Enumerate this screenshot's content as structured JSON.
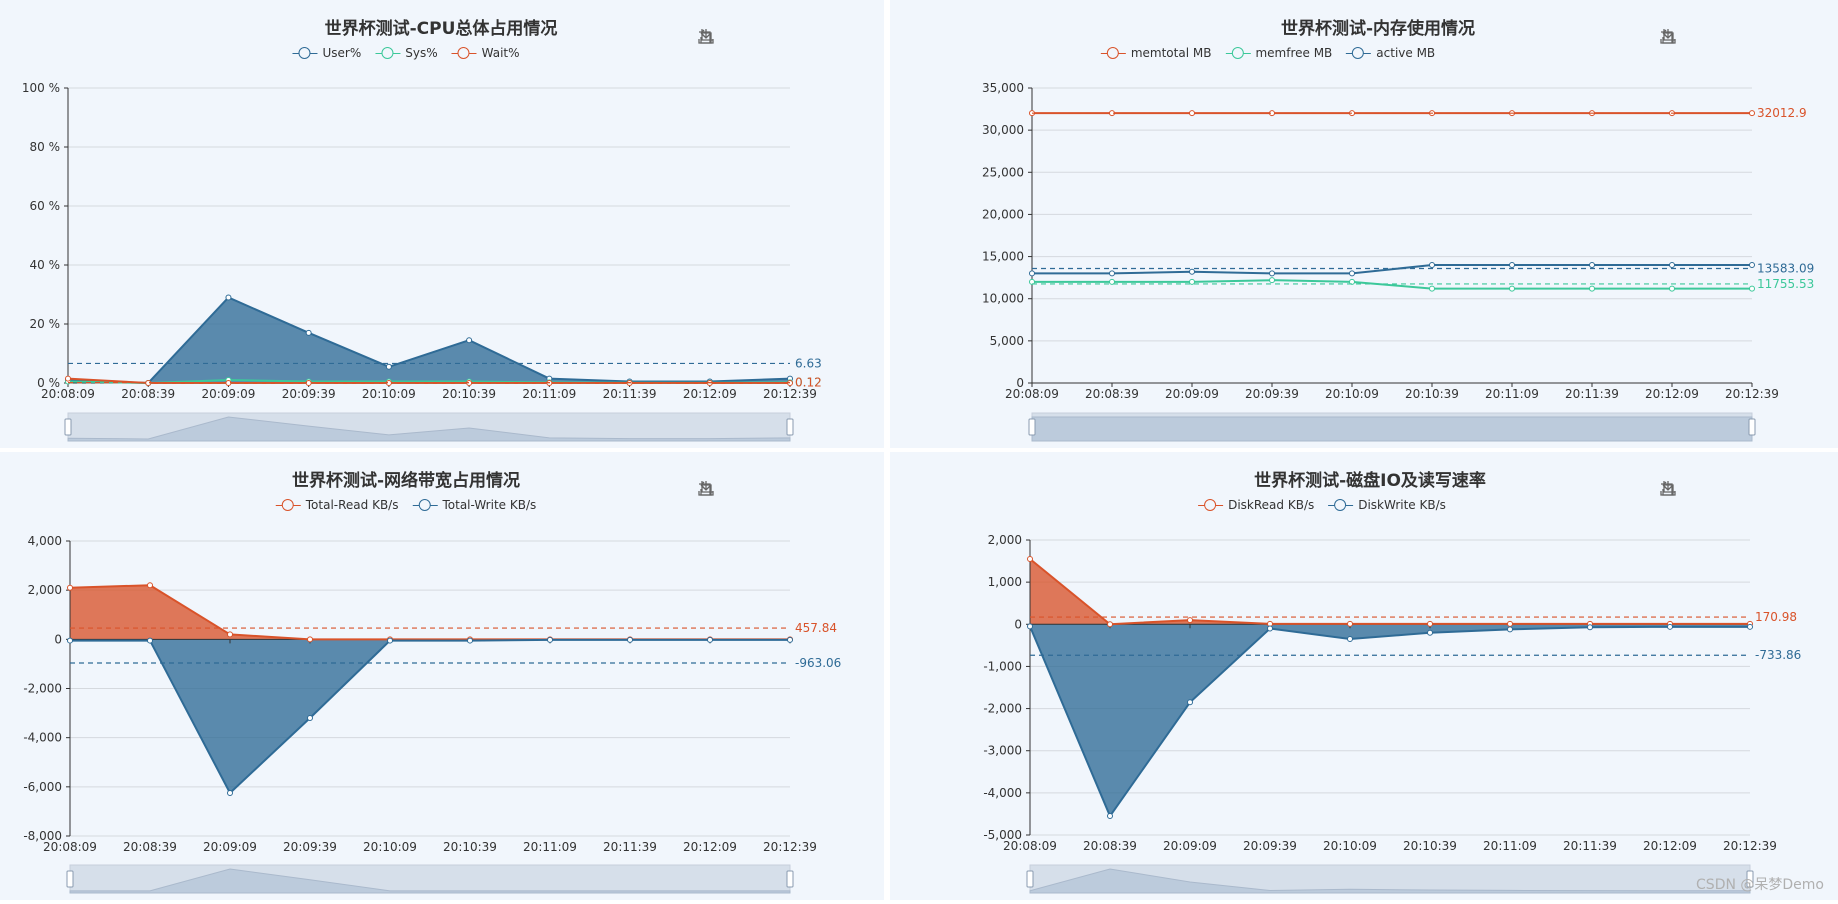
{
  "watermark": "CSDN @呆梦Demo",
  "charts": [
    {
      "title": "世界杯测试-CPU总体占用情况",
      "legend": [
        {
          "name": "User%",
          "color": "#2f6b96"
        },
        {
          "name": "Sys%",
          "color": "#3cc89a"
        },
        {
          "name": "Wait%",
          "color": "#d9532a"
        }
      ]
    },
    {
      "title": "世界杯测试-内存使用情况",
      "legend": [
        {
          "name": "memtotal MB",
          "color": "#d9532a"
        },
        {
          "name": "memfree MB",
          "color": "#3cc89a"
        },
        {
          "name": "active MB",
          "color": "#2f6b96"
        }
      ]
    },
    {
      "title": "世界杯测试-网络带宽占用情况",
      "legend": [
        {
          "name": "Total-Read KB/s",
          "color": "#d9532a"
        },
        {
          "name": "Total-Write KB/s",
          "color": "#2f6b96"
        }
      ]
    },
    {
      "title": "世界杯测试-磁盘IO及读写速率",
      "legend": [
        {
          "name": "DiskRead KB/s",
          "color": "#d9532a"
        },
        {
          "name": "DiskWrite KB/s",
          "color": "#2f6b96"
        }
      ]
    }
  ],
  "chart_data": [
    {
      "type": "area",
      "title": "世界杯测试-CPU总体占用情况",
      "categories": [
        "20:08:09",
        "20:08:39",
        "20:09:09",
        "20:09:39",
        "20:10:09",
        "20:10:39",
        "20:11:09",
        "20:11:39",
        "20:12:09",
        "20:12:39"
      ],
      "ylim": [
        0,
        100
      ],
      "yticks": [
        0,
        20,
        40,
        60,
        80,
        100
      ],
      "ytick_labels": [
        "0 %",
        "20 %",
        "40 %",
        "60 %",
        "80 %",
        "100 %"
      ],
      "series": [
        {
          "name": "User%",
          "color": "#2f6b96",
          "fill": true,
          "values": [
            1,
            0,
            29,
            17,
            5.5,
            14.5,
            1.5,
            0.5,
            0.5,
            1.5
          ],
          "avg_label": "6.63",
          "avg": 6.63
        },
        {
          "name": "Sys%",
          "color": "#3cc89a",
          "fill": false,
          "values": [
            0.5,
            0,
            1,
            0.5,
            0.5,
            0.5,
            0.2,
            0.1,
            0.1,
            0.2
          ],
          "avg_label": "0.12",
          "avg": 0.12
        },
        {
          "name": "Wait%",
          "color": "#d9532a",
          "fill": false,
          "values": [
            1.5,
            0,
            0,
            0,
            0,
            0,
            0,
            0,
            0,
            0
          ],
          "avg_label": "0.12",
          "avg": 0.12
        }
      ],
      "grid": true,
      "legend_position": "top"
    },
    {
      "type": "line",
      "title": "世界杯测试-内存使用情况",
      "categories": [
        "20:08:09",
        "20:08:39",
        "20:09:09",
        "20:09:39",
        "20:10:09",
        "20:10:39",
        "20:11:09",
        "20:11:39",
        "20:12:09",
        "20:12:39"
      ],
      "ylim": [
        0,
        35000
      ],
      "yticks": [
        0,
        5000,
        10000,
        15000,
        20000,
        25000,
        30000,
        35000
      ],
      "ytick_labels": [
        "0",
        "5,000",
        "10,000",
        "15,000",
        "20,000",
        "25,000",
        "30,000",
        "35,000"
      ],
      "series": [
        {
          "name": "memtotal MB",
          "color": "#d9532a",
          "fill": false,
          "values": [
            32012.9,
            32012.9,
            32012.9,
            32012.9,
            32012.9,
            32012.9,
            32012.9,
            32012.9,
            32012.9,
            32012.9
          ],
          "avg_label": "32012.9",
          "avg": 32012.9
        },
        {
          "name": "memfree MB",
          "color": "#3cc89a",
          "fill": false,
          "values": [
            12000,
            12000,
            12000,
            12200,
            12000,
            11200,
            11200,
            11200,
            11200,
            11200
          ],
          "avg_label": "11755.53",
          "avg": 11755.53
        },
        {
          "name": "active MB",
          "color": "#2f6b96",
          "fill": false,
          "values": [
            13000,
            13000,
            13200,
            13000,
            13000,
            14000,
            14000,
            14000,
            14000,
            14000
          ],
          "avg_label": "13583.09",
          "avg": 13583.09
        }
      ],
      "grid": true,
      "legend_position": "top"
    },
    {
      "type": "area",
      "title": "世界杯测试-网络带宽占用情况",
      "categories": [
        "20:08:09",
        "20:08:39",
        "20:09:09",
        "20:09:39",
        "20:10:09",
        "20:10:39",
        "20:11:09",
        "20:11:39",
        "20:12:09",
        "20:12:39"
      ],
      "ylim": [
        -8000,
        4000
      ],
      "yticks": [
        -8000,
        -6000,
        -4000,
        -2000,
        0,
        2000,
        4000
      ],
      "ytick_labels": [
        "-8,000",
        "-6,000",
        "-4,000",
        "-2,000",
        "0",
        "2,000",
        "4,000"
      ],
      "series": [
        {
          "name": "Total-Read KB/s",
          "color": "#d9532a",
          "fill": true,
          "values": [
            2100,
            2200,
            200,
            0,
            0,
            0,
            0,
            0,
            0,
            0
          ],
          "avg_label": "457.84",
          "avg": 457.84
        },
        {
          "name": "Total-Write KB/s",
          "color": "#2f6b96",
          "fill": true,
          "values": [
            -50,
            -50,
            -6250,
            -3200,
            -50,
            -50,
            -20,
            -20,
            -20,
            -20
          ],
          "avg_label": "-963.06",
          "avg": -963.06
        }
      ],
      "grid": true,
      "legend_position": "top"
    },
    {
      "type": "area",
      "title": "世界杯测试-磁盘IO及读写速率",
      "categories": [
        "20:08:09",
        "20:08:39",
        "20:09:09",
        "20:09:39",
        "20:10:09",
        "20:10:39",
        "20:11:09",
        "20:11:39",
        "20:12:09",
        "20:12:39"
      ],
      "ylim": [
        -5000,
        2000
      ],
      "yticks": [
        -5000,
        -4000,
        -3000,
        -2000,
        -1000,
        0,
        1000,
        2000
      ],
      "ytick_labels": [
        "-5,000",
        "-4,000",
        "-3,000",
        "-2,000",
        "-1,000",
        "0",
        "1,000",
        "2,000"
      ],
      "series": [
        {
          "name": "DiskRead KB/s",
          "color": "#d9532a",
          "fill": true,
          "values": [
            1550,
            0,
            100,
            10,
            10,
            10,
            10,
            10,
            10,
            10
          ],
          "avg_label": "170.98",
          "avg": 170.98
        },
        {
          "name": "DiskWrite KB/s",
          "color": "#2f6b96",
          "fill": true,
          "values": [
            -50,
            -4550,
            -1850,
            -100,
            -350,
            -200,
            -120,
            -70,
            -60,
            -60
          ],
          "avg_label": "-733.86",
          "avg": -733.86
        }
      ],
      "grid": true,
      "legend_position": "top"
    }
  ]
}
